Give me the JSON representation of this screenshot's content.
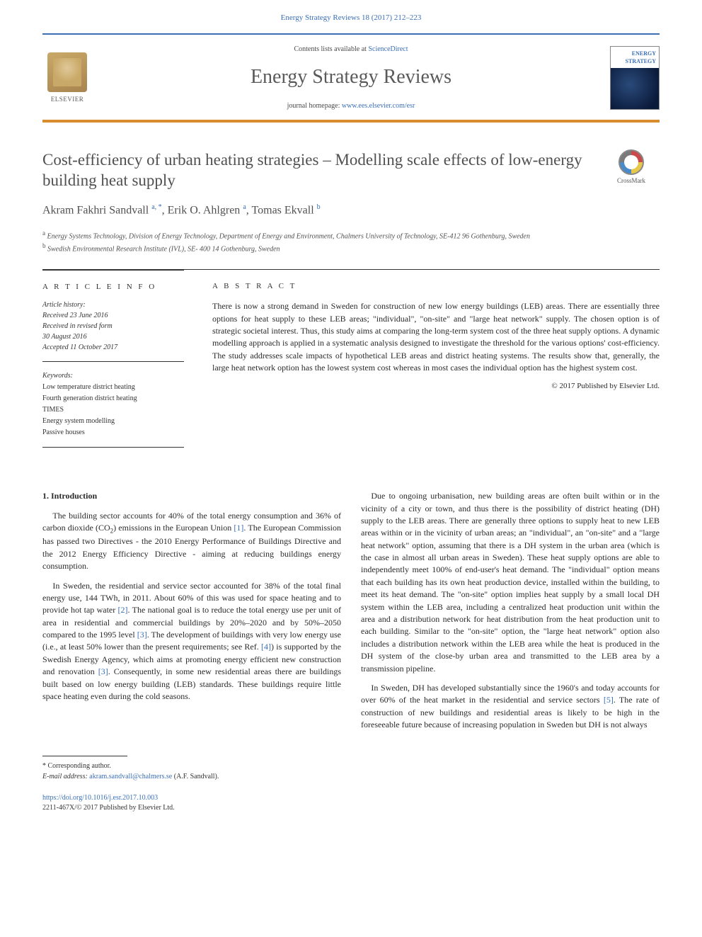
{
  "header": {
    "citation": "Energy Strategy Reviews 18 (2017) 212–223",
    "contents_prefix": "Contents lists available at ",
    "contents_link": "ScienceDirect",
    "journal_title": "Energy Strategy Reviews",
    "homepage_prefix": "journal homepage: ",
    "homepage_link": "www.ees.elsevier.com/esr",
    "publisher_name": "ELSEVIER",
    "cover_label_1": "ENERGY",
    "cover_label_2": "STRATEGY"
  },
  "colors": {
    "rule_top": "#3b6fb6",
    "rule_bottom": "#d98b2e",
    "link": "#3b6fb6",
    "text": "#2a2a2a",
    "muted": "#505050"
  },
  "article": {
    "title": "Cost-efficiency of urban heating strategies – Modelling scale effects of low-energy building heat supply",
    "crossmark_label": "CrossMark",
    "authors_html": "Akram Fakhri Sandvall <sup>a, *</sup>, Erik O. Ahlgren <sup>a</sup>, Tomas Ekvall <sup>b</sup>",
    "affiliations": [
      {
        "sup": "a",
        "text": "Energy Systems Technology, Division of Energy Technology, Department of Energy and Environment, Chalmers University of Technology, SE-412 96 Gothenburg, Sweden"
      },
      {
        "sup": "b",
        "text": "Swedish Environmental Research Institute (IVL), SE- 400 14 Gothenburg, Sweden"
      }
    ]
  },
  "info": {
    "heading": "A R T I C L E  I N F O",
    "history_label": "Article history:",
    "history": [
      "Received 23 June 2016",
      "Received in revised form",
      "30 August 2016",
      "Accepted 11 October 2017"
    ],
    "keywords_label": "Keywords:",
    "keywords": [
      "Low temperature district heating",
      "Fourth generation district heating",
      "TIMES",
      "Energy system modelling",
      "Passive houses"
    ]
  },
  "abstract": {
    "heading": "A B S T R A C T",
    "text": "There is now a strong demand in Sweden for construction of new low energy buildings (LEB) areas. There are essentially three options for heat supply to these LEB areas; \"individual\", \"on-site\" and \"large heat network\" supply. The chosen option is of strategic societal interest. Thus, this study aims at comparing the long-term system cost of the three heat supply options. A dynamic modelling approach is applied in a systematic analysis designed to investigate the threshold for the various options' cost-efficiency. The study addresses scale impacts of hypothetical LEB areas and district heating systems. The results show that, generally, the large heat network option has the lowest system cost whereas in most cases the individual option has the highest system cost.",
    "copyright": "© 2017 Published by Elsevier Ltd."
  },
  "body": {
    "section_heading": "1. Introduction",
    "paragraphs": [
      "The building sector accounts for 40% of the total energy consumption and 36% of carbon dioxide (CO₂) emissions in the European Union [1]. The European Commission has passed two Directives - the 2010 Energy Performance of Buildings Directive and the 2012 Energy Efficiency Directive - aiming at reducing buildings energy consumption.",
      "In Sweden, the residential and service sector accounted for 38% of the total final energy use, 144 TWh, in 2011. About 60% of this was used for space heating and to provide hot tap water [2]. The national goal is to reduce the total energy use per unit of area in residential and commercial buildings by 20%–2020 and by 50%–2050 compared to the 1995 level [3]. The development of buildings with very low energy use (i.e., at least 50% lower than the present requirements; see Ref. [4]) is supported by the Swedish Energy Agency, which aims at promoting energy efficient new construction and renovation [3]. Consequently, in some new residential areas there are buildings built based on low energy building (LEB) standards. These buildings require little space heating even during the cold seasons.",
      "Due to ongoing urbanisation, new building areas are often built within or in the vicinity of a city or town, and thus there is the possibility of district heating (DH) supply to the LEB areas. There are generally three options to supply heat to new LEB areas within or in the vicinity of urban areas; an \"individual\", an \"on-site\" and a \"large heat network\" option, assuming that there is a DH system in the urban area (which is the case in almost all urban areas in Sweden). These heat supply options are able to independently meet 100% of end-user's heat demand. The \"individual\" option means that each building has its own heat production device, installed within the building, to meet its heat demand. The \"on-site\" option implies heat supply by a small local DH system within the LEB area, including a centralized heat production unit within the area and a distribution network for heat distribution from the heat production unit to each building. Similar to the \"on-site\" option, the \"large heat network\" option also includes a distribution network within the LEB area while the heat is produced in the DH system of the close-by urban area and transmitted to the LEB area by a transmission pipeline.",
      "In Sweden, DH has developed substantially since the 1960's and today accounts for over 60% of the heat market in the residential and service sectors [5]. The rate of construction of new buildings and residential areas is likely to be high in the foreseeable future because of increasing population in Sweden but DH is not always"
    ],
    "ref_numbers": [
      "[1]",
      "[2]",
      "[3]",
      "[4]",
      "[5]"
    ]
  },
  "footnotes": {
    "corr": "* Corresponding author.",
    "email_label": "E-mail address: ",
    "email": "akram.sandvall@chalmers.se",
    "email_suffix": " (A.F. Sandvall)."
  },
  "doi": {
    "url": "https://doi.org/10.1016/j.esr.2017.10.003",
    "issn_line": "2211-467X/© 2017 Published by Elsevier Ltd."
  }
}
